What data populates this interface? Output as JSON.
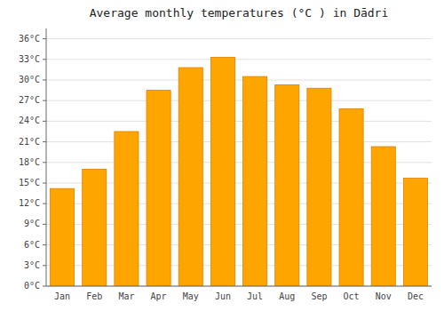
{
  "chart_data": {
    "type": "bar",
    "title": "Average monthly temperatures (°C ) in Dādri",
    "categories": [
      "Jan",
      "Feb",
      "Mar",
      "Apr",
      "May",
      "Jun",
      "Jul",
      "Aug",
      "Sep",
      "Oct",
      "Nov",
      "Dec"
    ],
    "values": [
      14.2,
      17.0,
      22.5,
      28.5,
      31.8,
      33.3,
      30.5,
      29.3,
      28.8,
      25.8,
      20.3,
      15.7
    ],
    "color": "#FFA500",
    "ylim": [
      0,
      37.5
    ],
    "yticks": [
      {
        "value": 0,
        "label": "0°C"
      },
      {
        "value": 3,
        "label": "3°C"
      },
      {
        "value": 6,
        "label": "6°C"
      },
      {
        "value": 9,
        "label": "9°C"
      },
      {
        "value": 12,
        "label": "12°C"
      },
      {
        "value": 15,
        "label": "15°C"
      },
      {
        "value": 18,
        "label": "18°C"
      },
      {
        "value": 21,
        "label": "21°C"
      },
      {
        "value": 24,
        "label": "24°C"
      },
      {
        "value": 27,
        "label": "27°C"
      },
      {
        "value": 30,
        "label": "30°C"
      },
      {
        "value": 33,
        "label": "33°C"
      },
      {
        "value": 36,
        "label": "36°C"
      }
    ],
    "grid": true
  }
}
